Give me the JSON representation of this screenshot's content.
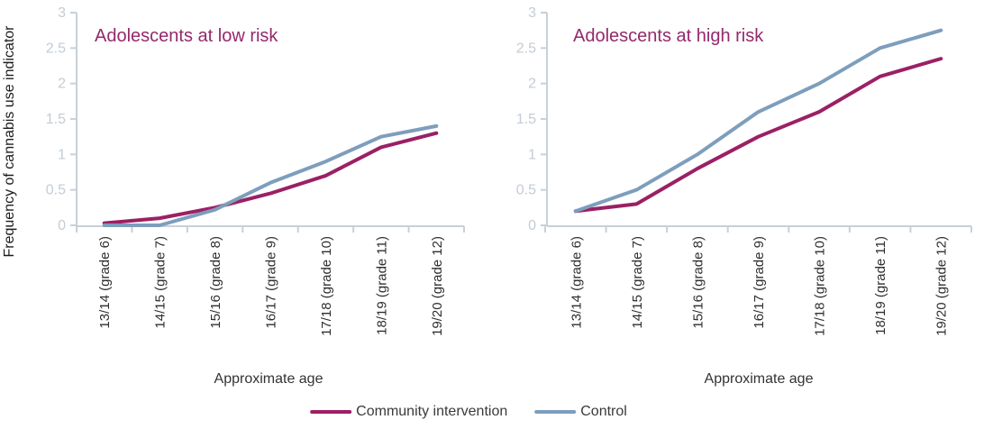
{
  "figure": {
    "y_axis_title": "Frequency of cannabis use indicator",
    "x_axis_title": "Approximate age",
    "legend": [
      {
        "label": "Community intervention",
        "color": "#9b2064"
      },
      {
        "label": "Control",
        "color": "#7d9ebc"
      }
    ],
    "legend_position": "bottom-center",
    "axis_color": "#c8d0d8",
    "tick_label_color": "#c3ccd6",
    "title_color": "#94296b"
  },
  "chart_data": [
    {
      "type": "line",
      "title": "Adolescents at low risk",
      "xlabel": "Approximate age",
      "ylabel": "Frequency of cannabis use indicator",
      "categories": [
        "13/14 (grade 6)",
        "14/15 (grade 7)",
        "15/16 (grade 8)",
        "16/17 (grade 9)",
        "17/18 (grade 10)",
        "18/19 (grade 11)",
        "19/20 (grade 12)"
      ],
      "ylim": [
        0,
        3
      ],
      "ytick_step": 0.5,
      "yticks": [
        "0",
        "0.5",
        "1",
        "1.5",
        "2",
        "2.5",
        "3"
      ],
      "grid": false,
      "series": [
        {
          "name": "Community intervention",
          "color": "#9b2064",
          "values": [
            0.03,
            0.1,
            0.25,
            0.45,
            0.7,
            1.1,
            1.3
          ]
        },
        {
          "name": "Control",
          "color": "#7d9ebc",
          "values": [
            0,
            0,
            0.22,
            0.6,
            0.9,
            1.25,
            1.4
          ]
        }
      ]
    },
    {
      "type": "line",
      "title": "Adolescents at high risk",
      "xlabel": "Approximate age",
      "ylabel": "Frequency of cannabis use indicator",
      "categories": [
        "13/14 (grade 6)",
        "14/15 (grade 7)",
        "15/16 (grade 8)",
        "16/17 (grade 9)",
        "17/18 (grade 10)",
        "18/19 (grade 11)",
        "19/20 (grade 12)"
      ],
      "ylim": [
        0,
        3
      ],
      "ytick_step": 0.5,
      "yticks": [
        "0",
        "0.5",
        "1",
        "1.5",
        "2",
        "2.5",
        "3"
      ],
      "grid": false,
      "series": [
        {
          "name": "Community intervention",
          "color": "#9b2064",
          "values": [
            0.2,
            0.3,
            0.8,
            1.25,
            1.6,
            2.1,
            2.35
          ]
        },
        {
          "name": "Control",
          "color": "#7d9ebc",
          "values": [
            0.2,
            0.5,
            1.0,
            1.6,
            2.0,
            2.5,
            2.75
          ]
        }
      ]
    }
  ]
}
